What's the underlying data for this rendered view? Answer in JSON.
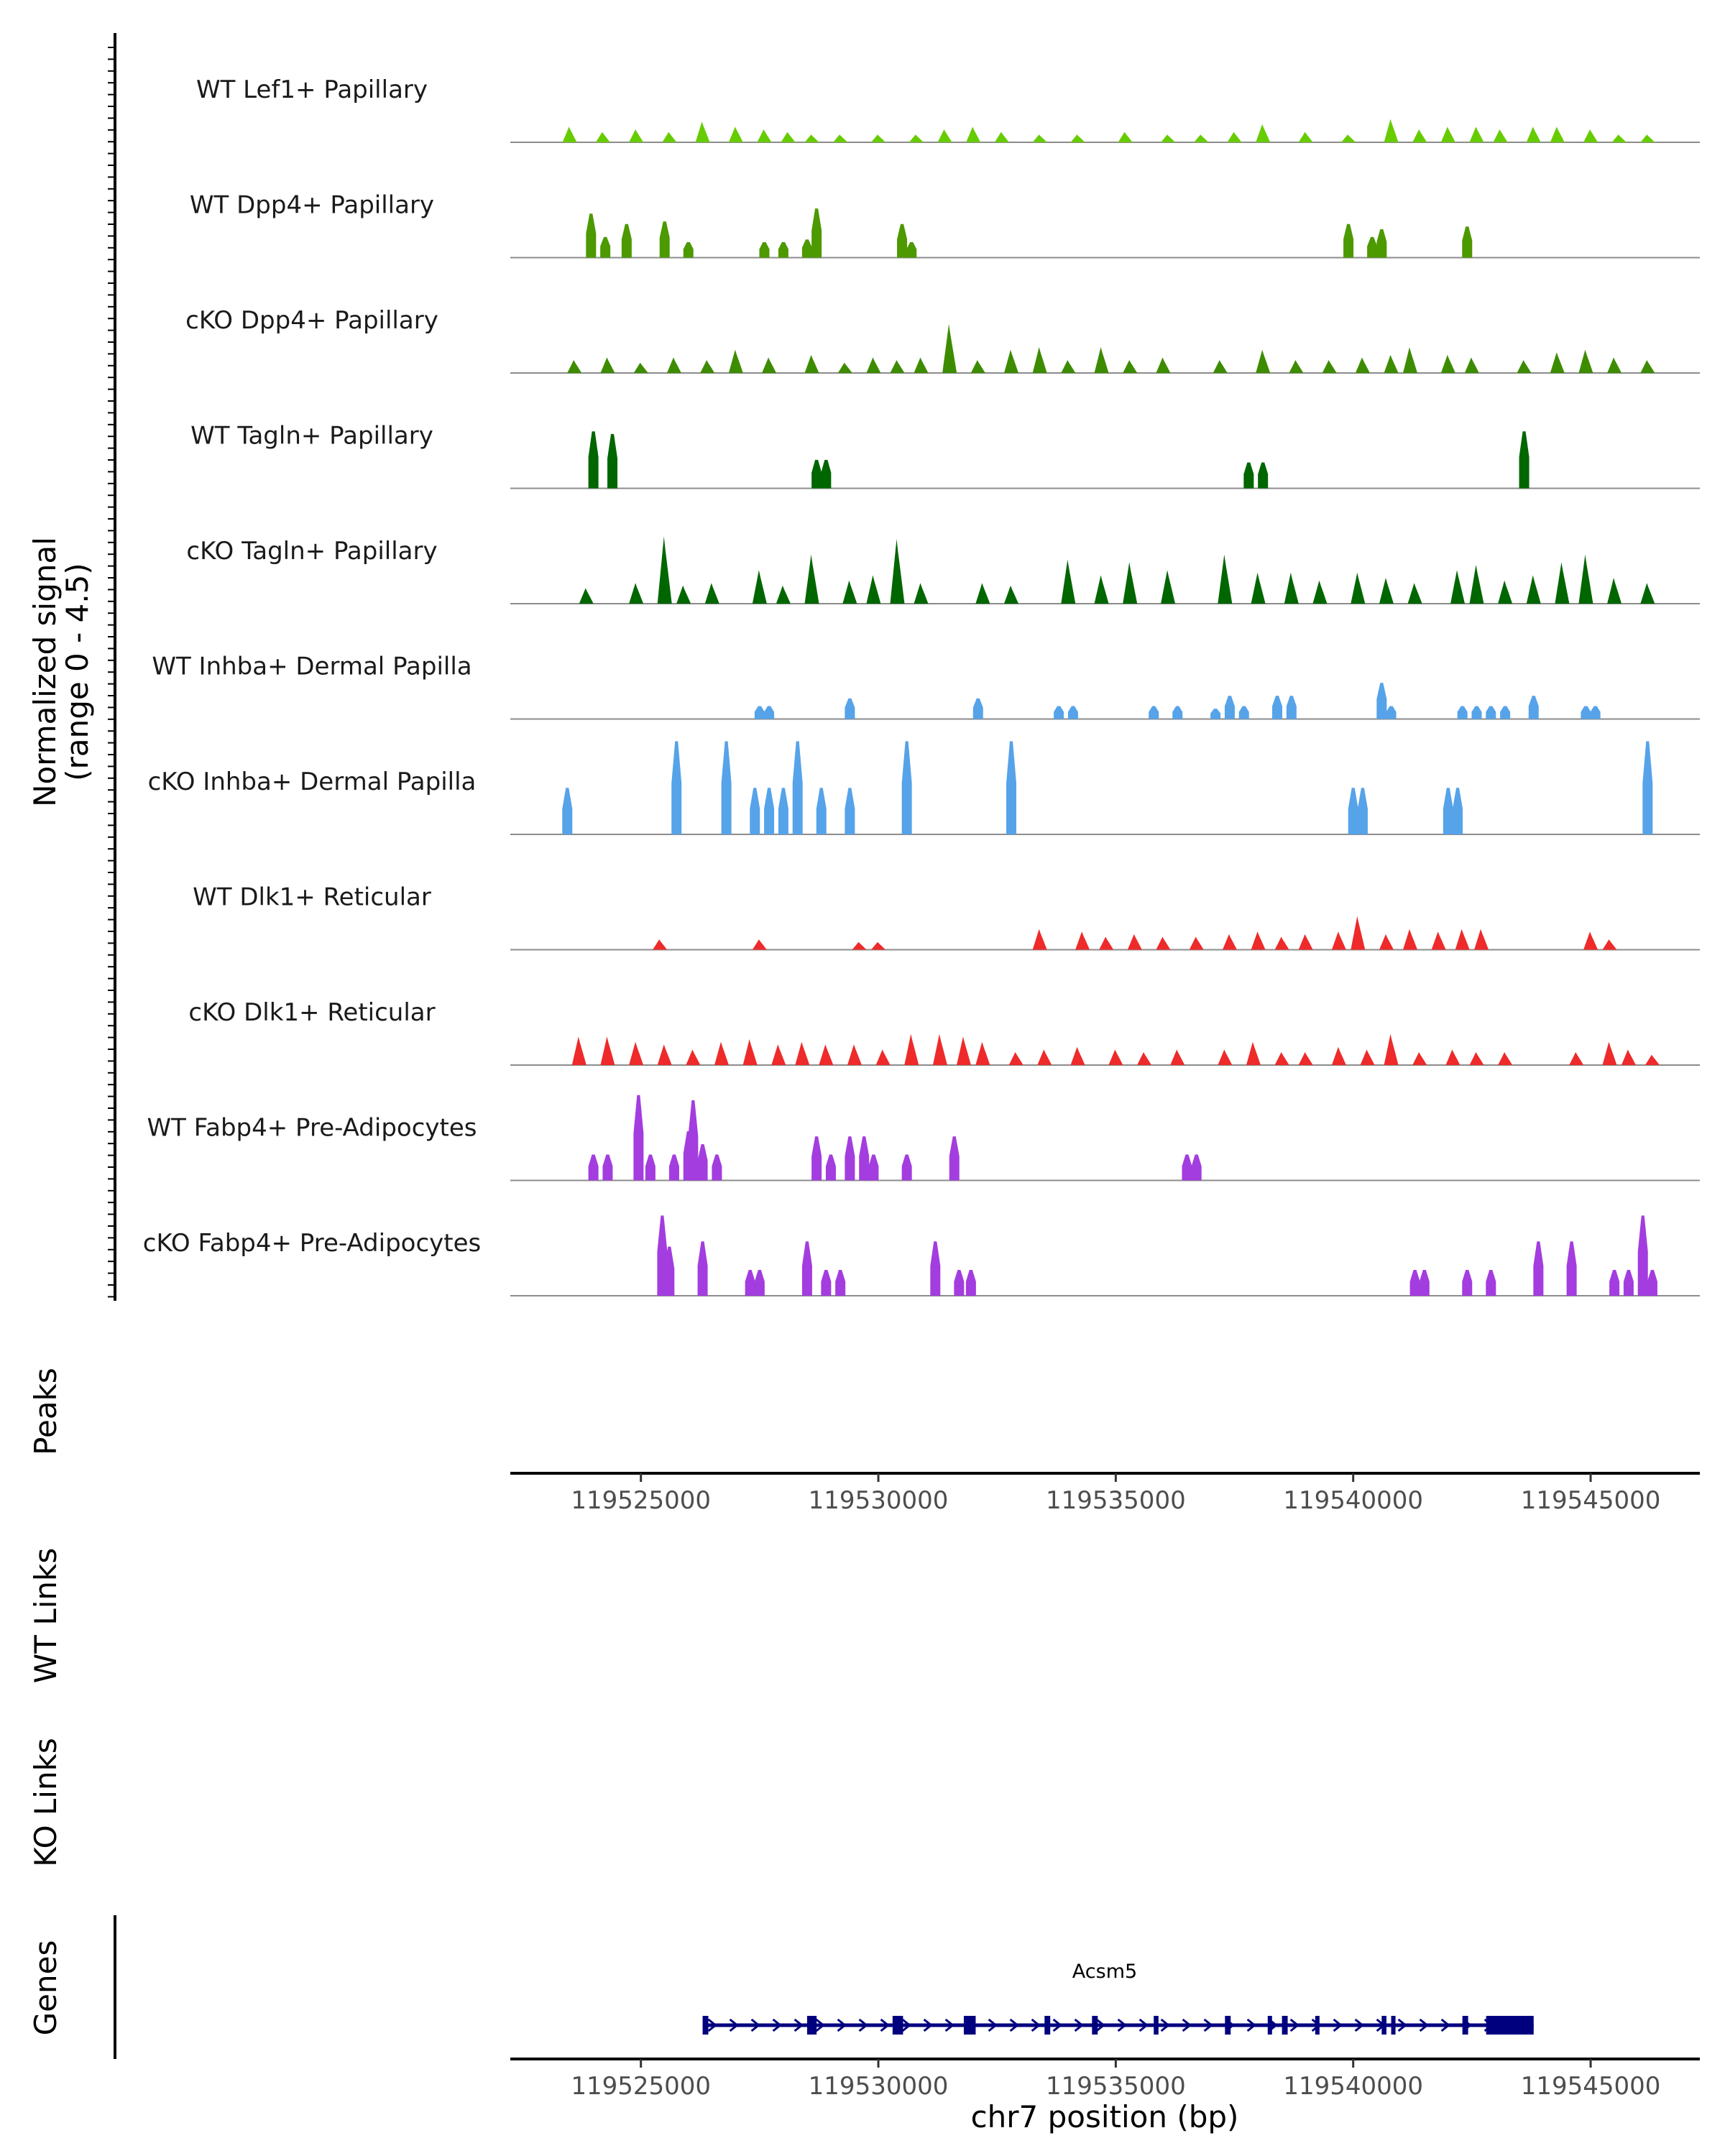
{
  "chart_data": {
    "type": "area",
    "chromosome": "chr7",
    "xlim": [
      119522250,
      119547300
    ],
    "x_ticks": [
      119525000,
      119530000,
      119535000,
      119540000,
      119545000
    ],
    "x_tick_labels": [
      "119525000",
      "119530000",
      "119535000",
      "119540000",
      "119545000"
    ],
    "xlabel": "chr7 position (bp)",
    "coverage_ylabel_line1": "Normalized signal",
    "coverage_ylabel_line2": "(range 0 - 4.5)",
    "ylim": [
      0,
      4.5
    ],
    "panel_labels": {
      "peaks": "Peaks",
      "wt_links": "WT Links",
      "ko_links": "KO Links",
      "genes": "Genes"
    },
    "tracks": [
      {
        "name": "WT Lef1+ Papillary",
        "color": "#66CC00",
        "style": "dense",
        "peaks": [
          [
            119523500,
            0.6
          ],
          [
            119524200,
            0.4
          ],
          [
            119524900,
            0.5
          ],
          [
            119525600,
            0.4
          ],
          [
            119526300,
            0.8
          ],
          [
            119527000,
            0.6
          ],
          [
            119527600,
            0.5
          ],
          [
            119528100,
            0.4
          ],
          [
            119528600,
            0.3
          ],
          [
            119529200,
            0.3
          ],
          [
            119530000,
            0.3
          ],
          [
            119530800,
            0.3
          ],
          [
            119531400,
            0.5
          ],
          [
            119532000,
            0.6
          ],
          [
            119532600,
            0.4
          ],
          [
            119533400,
            0.3
          ],
          [
            119534200,
            0.3
          ],
          [
            119535200,
            0.4
          ],
          [
            119536100,
            0.3
          ],
          [
            119536800,
            0.3
          ],
          [
            119537500,
            0.4
          ],
          [
            119538100,
            0.7
          ],
          [
            119539000,
            0.4
          ],
          [
            119539900,
            0.3
          ],
          [
            119540800,
            0.9
          ],
          [
            119541400,
            0.5
          ],
          [
            119542000,
            0.6
          ],
          [
            119542600,
            0.6
          ],
          [
            119543100,
            0.5
          ],
          [
            119543800,
            0.6
          ],
          [
            119544300,
            0.6
          ],
          [
            119545000,
            0.5
          ],
          [
            119545600,
            0.3
          ],
          [
            119546200,
            0.3
          ]
        ]
      },
      {
        "name": "WT Dpp4+ Papillary",
        "color": "#4C9900",
        "style": "sparse",
        "peaks": [
          [
            119523950,
            1.7
          ],
          [
            119524250,
            0.8
          ],
          [
            119524700,
            1.3
          ],
          [
            119525500,
            1.4
          ],
          [
            119526000,
            0.6
          ],
          [
            119527600,
            0.6
          ],
          [
            119528000,
            0.6
          ],
          [
            119528500,
            0.7
          ],
          [
            119528700,
            1.9
          ],
          [
            119530500,
            1.3
          ],
          [
            119530700,
            0.6
          ],
          [
            119539900,
            1.3
          ],
          [
            119540400,
            0.8
          ],
          [
            119540600,
            1.1
          ],
          [
            119542400,
            1.2
          ]
        ]
      },
      {
        "name": "cKO Dpp4+ Papillary",
        "color": "#3D8C00",
        "style": "dense",
        "peaks": [
          [
            119523600,
            0.5
          ],
          [
            119524300,
            0.6
          ],
          [
            119525000,
            0.4
          ],
          [
            119525700,
            0.6
          ],
          [
            119526400,
            0.5
          ],
          [
            119527000,
            0.9
          ],
          [
            119527700,
            0.6
          ],
          [
            119528600,
            0.7
          ],
          [
            119529300,
            0.4
          ],
          [
            119529900,
            0.6
          ],
          [
            119530400,
            0.5
          ],
          [
            119530900,
            0.6
          ],
          [
            119531500,
            1.9
          ],
          [
            119532100,
            0.5
          ],
          [
            119532800,
            0.9
          ],
          [
            119533400,
            1.0
          ],
          [
            119534000,
            0.5
          ],
          [
            119534700,
            1.0
          ],
          [
            119535300,
            0.5
          ],
          [
            119536000,
            0.6
          ],
          [
            119537200,
            0.5
          ],
          [
            119538100,
            0.9
          ],
          [
            119538800,
            0.5
          ],
          [
            119539500,
            0.5
          ],
          [
            119540200,
            0.6
          ],
          [
            119540800,
            0.7
          ],
          [
            119541200,
            1.0
          ],
          [
            119542000,
            0.7
          ],
          [
            119542500,
            0.6
          ],
          [
            119543600,
            0.5
          ],
          [
            119544300,
            0.8
          ],
          [
            119544900,
            0.9
          ],
          [
            119545500,
            0.6
          ],
          [
            119546200,
            0.5
          ]
        ]
      },
      {
        "name": "WT Tagln+ Papillary",
        "color": "#006600",
        "style": "sparse",
        "peaks": [
          [
            119524000,
            2.2
          ],
          [
            119524400,
            2.1
          ],
          [
            119528700,
            1.1
          ],
          [
            119528900,
            1.1
          ],
          [
            119537800,
            1.0
          ],
          [
            119538100,
            1.0
          ],
          [
            119543600,
            2.2
          ]
        ]
      },
      {
        "name": "cKO Tagln+ Papillary",
        "color": "#006600",
        "style": "dense",
        "peaks": [
          [
            119523850,
            0.6
          ],
          [
            119524900,
            0.8
          ],
          [
            119525500,
            2.6
          ],
          [
            119525900,
            0.7
          ],
          [
            119526500,
            0.8
          ],
          [
            119527500,
            1.3
          ],
          [
            119528000,
            0.7
          ],
          [
            119528600,
            1.9
          ],
          [
            119529400,
            0.9
          ],
          [
            119529900,
            1.1
          ],
          [
            119530400,
            2.5
          ],
          [
            119530900,
            0.8
          ],
          [
            119532200,
            0.8
          ],
          [
            119532800,
            0.7
          ],
          [
            119534000,
            1.7
          ],
          [
            119534700,
            1.1
          ],
          [
            119535300,
            1.6
          ],
          [
            119536100,
            1.3
          ],
          [
            119537300,
            1.9
          ],
          [
            119538000,
            1.2
          ],
          [
            119538700,
            1.2
          ],
          [
            119539300,
            0.9
          ],
          [
            119540100,
            1.2
          ],
          [
            119540700,
            1.0
          ],
          [
            119541300,
            0.8
          ],
          [
            119542200,
            1.3
          ],
          [
            119542600,
            1.5
          ],
          [
            119543200,
            0.9
          ],
          [
            119543800,
            1.1
          ],
          [
            119544400,
            1.6
          ],
          [
            119544900,
            1.9
          ],
          [
            119545500,
            1.0
          ],
          [
            119546200,
            0.8
          ]
        ]
      },
      {
        "name": "WT Inhba+ Dermal Papilla",
        "color": "#56A3E9",
        "style": "sparse",
        "peaks": [
          [
            119527500,
            0.5
          ],
          [
            119527700,
            0.5
          ],
          [
            119529400,
            0.8
          ],
          [
            119532100,
            0.8
          ],
          [
            119533800,
            0.5
          ],
          [
            119534100,
            0.5
          ],
          [
            119535800,
            0.5
          ],
          [
            119536300,
            0.5
          ],
          [
            119537100,
            0.4
          ],
          [
            119537400,
            0.9
          ],
          [
            119537700,
            0.5
          ],
          [
            119538400,
            0.9
          ],
          [
            119538700,
            0.9
          ],
          [
            119540600,
            1.4
          ],
          [
            119540800,
            0.5
          ],
          [
            119542300,
            0.5
          ],
          [
            119542600,
            0.5
          ],
          [
            119542900,
            0.5
          ],
          [
            119543200,
            0.5
          ],
          [
            119543800,
            0.9
          ],
          [
            119544900,
            0.5
          ],
          [
            119545100,
            0.5
          ]
        ]
      },
      {
        "name": "cKO Inhba+ Dermal Papilla",
        "color": "#56A3E9",
        "style": "sparse",
        "peaks": [
          [
            119523450,
            1.8
          ],
          [
            119525750,
            3.6
          ],
          [
            119526800,
            3.6
          ],
          [
            119527400,
            1.8
          ],
          [
            119527700,
            1.8
          ],
          [
            119528000,
            1.8
          ],
          [
            119528300,
            3.6
          ],
          [
            119528800,
            1.8
          ],
          [
            119529400,
            1.8
          ],
          [
            119530600,
            3.6
          ],
          [
            119532800,
            3.6
          ],
          [
            119540000,
            1.8
          ],
          [
            119540200,
            1.8
          ],
          [
            119542000,
            1.8
          ],
          [
            119542200,
            1.8
          ],
          [
            119546200,
            3.6
          ]
        ]
      },
      {
        "name": "WT Dlk1+ Reticular",
        "color": "#EE2A2A",
        "style": "dense",
        "peaks": [
          [
            119525400,
            0.4
          ],
          [
            119527500,
            0.4
          ],
          [
            119529600,
            0.3
          ],
          [
            119530000,
            0.3
          ],
          [
            119533400,
            0.8
          ],
          [
            119534300,
            0.7
          ],
          [
            119534800,
            0.5
          ],
          [
            119535400,
            0.6
          ],
          [
            119536000,
            0.5
          ],
          [
            119536700,
            0.5
          ],
          [
            119537400,
            0.6
          ],
          [
            119538000,
            0.7
          ],
          [
            119538500,
            0.5
          ],
          [
            119539000,
            0.6
          ],
          [
            119539700,
            0.7
          ],
          [
            119540100,
            1.3
          ],
          [
            119540700,
            0.6
          ],
          [
            119541200,
            0.8
          ],
          [
            119541800,
            0.7
          ],
          [
            119542300,
            0.8
          ],
          [
            119542700,
            0.8
          ],
          [
            119545000,
            0.7
          ],
          [
            119545400,
            0.4
          ]
        ]
      },
      {
        "name": "cKO Dlk1+ Reticular",
        "color": "#EE2A2A",
        "style": "dense",
        "peaks": [
          [
            119523700,
            1.1
          ],
          [
            119524300,
            1.1
          ],
          [
            119524900,
            0.9
          ],
          [
            119525500,
            0.8
          ],
          [
            119526100,
            0.6
          ],
          [
            119526700,
            0.9
          ],
          [
            119527300,
            1.0
          ],
          [
            119527900,
            0.8
          ],
          [
            119528400,
            0.9
          ],
          [
            119528900,
            0.8
          ],
          [
            119529500,
            0.8
          ],
          [
            119530100,
            0.6
          ],
          [
            119530700,
            1.2
          ],
          [
            119531300,
            1.2
          ],
          [
            119531800,
            1.1
          ],
          [
            119532200,
            0.9
          ],
          [
            119532900,
            0.5
          ],
          [
            119533500,
            0.6
          ],
          [
            119534200,
            0.7
          ],
          [
            119535000,
            0.6
          ],
          [
            119535600,
            0.5
          ],
          [
            119536300,
            0.6
          ],
          [
            119537300,
            0.6
          ],
          [
            119537900,
            0.9
          ],
          [
            119538500,
            0.5
          ],
          [
            119539000,
            0.5
          ],
          [
            119539700,
            0.7
          ],
          [
            119540300,
            0.6
          ],
          [
            119540800,
            1.2
          ],
          [
            119541400,
            0.5
          ],
          [
            119542100,
            0.6
          ],
          [
            119542600,
            0.5
          ],
          [
            119543200,
            0.5
          ],
          [
            119544700,
            0.5
          ],
          [
            119545400,
            0.9
          ],
          [
            119545800,
            0.6
          ],
          [
            119546300,
            0.4
          ]
        ]
      },
      {
        "name": "WT Fabp4+ Pre-Adipocytes",
        "color": "#A33DDF",
        "style": "sparse",
        "peaks": [
          [
            119524000,
            1.0
          ],
          [
            119524300,
            1.0
          ],
          [
            119524950,
            3.3
          ],
          [
            119525200,
            1.0
          ],
          [
            119525700,
            1.0
          ],
          [
            119526000,
            1.9
          ],
          [
            119526100,
            3.1
          ],
          [
            119526300,
            1.4
          ],
          [
            119526600,
            1.0
          ],
          [
            119528700,
            1.7
          ],
          [
            119529000,
            1.0
          ],
          [
            119529400,
            1.7
          ],
          [
            119529700,
            1.7
          ],
          [
            119529900,
            1.0
          ],
          [
            119530600,
            1.0
          ],
          [
            119531600,
            1.7
          ],
          [
            119536500,
            1.0
          ],
          [
            119536700,
            1.0
          ]
        ]
      },
      {
        "name": "cKO Fabp4+ Pre-Adipocytes",
        "color": "#A33DDF",
        "style": "sparse",
        "peaks": [
          [
            119525450,
            3.1
          ],
          [
            119525600,
            1.9
          ],
          [
            119526300,
            2.1
          ],
          [
            119527300,
            1.0
          ],
          [
            119527500,
            1.0
          ],
          [
            119528500,
            2.1
          ],
          [
            119528900,
            1.0
          ],
          [
            119529200,
            1.0
          ],
          [
            119531200,
            2.1
          ],
          [
            119531700,
            1.0
          ],
          [
            119531950,
            1.0
          ],
          [
            119541300,
            1.0
          ],
          [
            119541500,
            1.0
          ],
          [
            119542400,
            1.0
          ],
          [
            119542900,
            1.0
          ],
          [
            119543900,
            2.1
          ],
          [
            119544600,
            2.1
          ],
          [
            119545500,
            1.0
          ],
          [
            119545800,
            1.0
          ],
          [
            119546100,
            3.1
          ],
          [
            119546300,
            1.0
          ]
        ]
      }
    ],
    "gene": {
      "name": "Acsm5",
      "start": 119526300,
      "end": 119543800,
      "strand": "+",
      "color": "#00007F",
      "exons": [
        [
          119526300,
          119526420
        ],
        [
          119528500,
          119528700
        ],
        [
          119530300,
          119530520
        ],
        [
          119531800,
          119532050
        ],
        [
          119533500,
          119533620
        ],
        [
          119534500,
          119534620
        ],
        [
          119535800,
          119535900
        ],
        [
          119537300,
          119537420
        ],
        [
          119538200,
          119538280
        ],
        [
          119538500,
          119538620
        ],
        [
          119539200,
          119539280
        ],
        [
          119540600,
          119540700
        ],
        [
          119540800,
          119540880
        ],
        [
          119542300,
          119542420
        ],
        [
          119542800,
          119543800
        ]
      ]
    }
  }
}
